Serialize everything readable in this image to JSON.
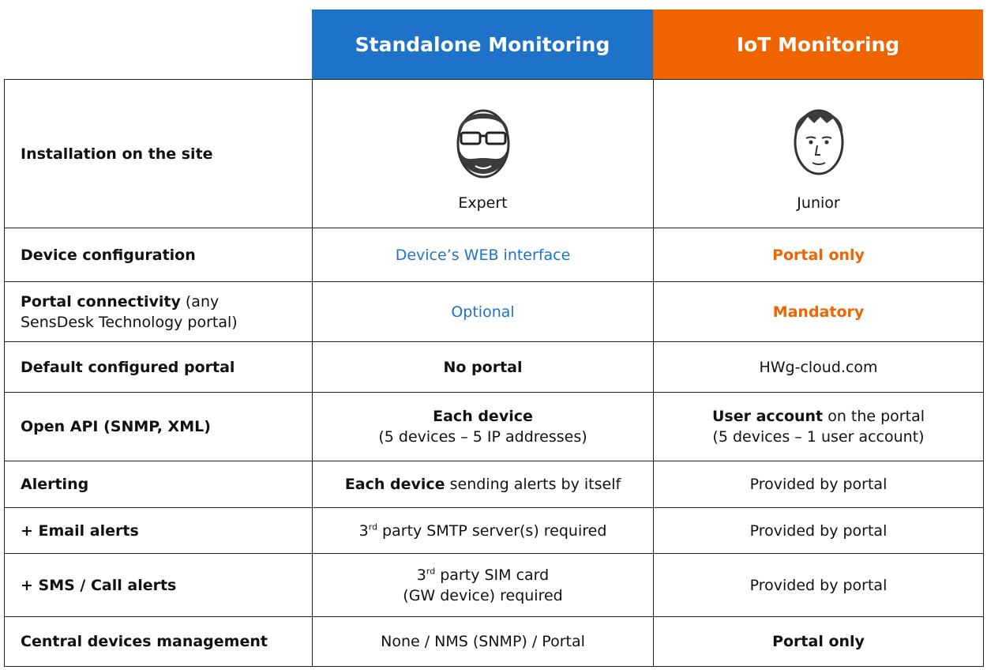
{
  "header": {
    "columns": [
      {
        "text": "Standalone Monitoring",
        "background": "#1e73c8"
      },
      {
        "text": "IoT Monitoring",
        "background": "#f06400"
      }
    ]
  },
  "table": {
    "rows": [
      {
        "label": [
          [
            {
              "text": "Installation on the site",
              "bold": true
            }
          ]
        ],
        "cells": [
          {
            "caption": "Expert"
          },
          {
            "caption": "Junior"
          }
        ]
      },
      {
        "label": [
          [
            {
              "text": "Device configuration",
              "bold": true
            }
          ]
        ],
        "cells": [
          {
            "color": "#1e73c8",
            "lines": [
              [
                {
                  "text": "Device’s WEB interface"
                }
              ]
            ]
          },
          {
            "color": "#f06400",
            "lines": [
              [
                {
                  "text": "Portal only",
                  "bold": true
                }
              ]
            ]
          }
        ]
      },
      {
        "label": [
          [
            {
              "text": "Portal connectivity",
              "bold": true
            },
            {
              "text": " (any"
            }
          ],
          [
            {
              "text": "SensDesk Technology portal)"
            }
          ]
        ],
        "cells": [
          {
            "color": "#1e73c8",
            "lines": [
              [
                {
                  "text": "Optional"
                }
              ]
            ]
          },
          {
            "color": "#f06400",
            "lines": [
              [
                {
                  "text": "Mandatory",
                  "bold": true
                }
              ]
            ]
          }
        ]
      },
      {
        "label": [
          [
            {
              "text": "Default configured portal",
              "bold": true
            }
          ]
        ],
        "cells": [
          {
            "lines": [
              [
                {
                  "text": "No portal",
                  "bold": true
                }
              ]
            ]
          },
          {
            "lines": [
              [
                {
                  "text": "HWg-cloud.com"
                }
              ]
            ]
          }
        ]
      },
      {
        "label": [
          [
            {
              "text": "Open API (SNMP, XML)",
              "bold": true
            }
          ]
        ],
        "cells": [
          {
            "lines": [
              [
                {
                  "text": "Each device",
                  "bold": true
                }
              ],
              [
                {
                  "text": "(5 devices – 5 IP addresses)"
                }
              ]
            ]
          },
          {
            "lines": [
              [
                {
                  "text": "User account",
                  "bold": true
                },
                {
                  "text": " on the portal"
                }
              ],
              [
                {
                  "text": "(5 devices – 1 user account)"
                }
              ]
            ]
          }
        ]
      },
      {
        "label": [
          [
            {
              "text": "Alerting",
              "bold": true
            }
          ]
        ],
        "cells": [
          {
            "lines": [
              [
                {
                  "text": "Each device",
                  "bold": true
                },
                {
                  "text": " sending alerts by itself"
                }
              ]
            ]
          },
          {
            "lines": [
              [
                {
                  "text": "Provided by portal"
                }
              ]
            ]
          }
        ]
      },
      {
        "label": [
          [
            {
              "text": "+ Email alerts",
              "bold": true
            }
          ]
        ],
        "cells": [
          {
            "lines": [
              [
                {
                  "text": "3"
                },
                {
                  "text": "rd",
                  "sup": true
                },
                {
                  "text": " party SMTP server(s) required"
                }
              ]
            ]
          },
          {
            "lines": [
              [
                {
                  "text": "Provided by portal"
                }
              ]
            ]
          }
        ]
      },
      {
        "label": [
          [
            {
              "text": "+ SMS / Call alerts",
              "bold": true
            }
          ]
        ],
        "cells": [
          {
            "lines": [
              [
                {
                  "text": "3"
                },
                {
                  "text": "rd",
                  "sup": true
                },
                {
                  "text": " party SIM card"
                }
              ],
              [
                {
                  "text": "(GW device) required"
                }
              ]
            ]
          },
          {
            "lines": [
              [
                {
                  "text": "Provided by portal"
                }
              ]
            ]
          }
        ]
      },
      {
        "label": [
          [
            {
              "text": "Central devices management",
              "bold": true
            }
          ]
        ],
        "cells": [
          {
            "lines": [
              [
                {
                  "text": "None / NMS (SNMP) / Portal"
                }
              ]
            ]
          },
          {
            "lines": [
              [
                {
                  "text": "Portal only",
                  "bold": true
                }
              ]
            ]
          }
        ]
      }
    ]
  }
}
